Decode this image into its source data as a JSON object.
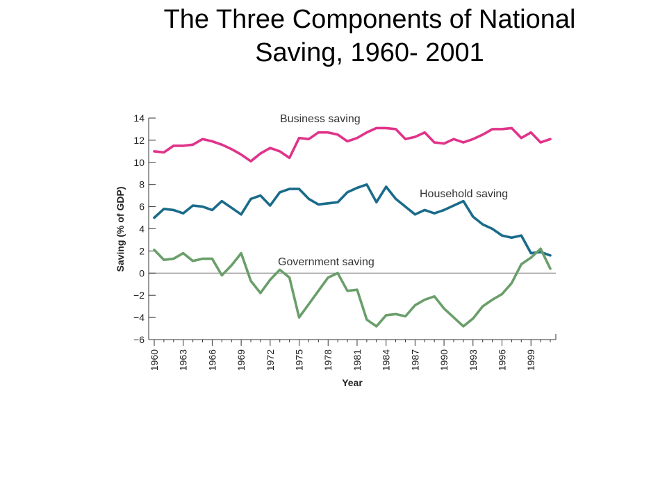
{
  "title": {
    "line1": "The Three Components of National",
    "line2": "Saving, 1960- 2001"
  },
  "chart_data": {
    "type": "line",
    "xlabel": "Year",
    "ylabel": "Saving (% of GDP)",
    "xlim": [
      1960,
      2001
    ],
    "ylim": [
      -6,
      14
    ],
    "y_ticks": [
      "14",
      "12",
      "10",
      "8",
      "6",
      "4",
      "2",
      "0",
      "−2",
      "−4",
      "−6"
    ],
    "y_tick_values": [
      14,
      12,
      10,
      8,
      6,
      4,
      2,
      0,
      -2,
      -4,
      -6
    ],
    "x_ticks": [
      "1960",
      "1963",
      "1966",
      "1969",
      "1972",
      "1975",
      "1978",
      "1981",
      "1984",
      "1987",
      "1990",
      "1993",
      "1996",
      "1999"
    ],
    "x_tick_values": [
      1960,
      1963,
      1966,
      1969,
      1972,
      1975,
      1978,
      1981,
      1984,
      1987,
      1990,
      1993,
      1996,
      1999
    ],
    "zero_line": true,
    "x": [
      1960,
      1961,
      1962,
      1963,
      1964,
      1965,
      1966,
      1967,
      1968,
      1969,
      1970,
      1971,
      1972,
      1973,
      1974,
      1975,
      1976,
      1977,
      1978,
      1979,
      1980,
      1981,
      1982,
      1983,
      1984,
      1985,
      1986,
      1987,
      1988,
      1989,
      1990,
      1991,
      1992,
      1993,
      1994,
      1995,
      1996,
      1997,
      1998,
      1999,
      2000,
      2001
    ],
    "series": [
      {
        "name": "Business saving",
        "color": "#e0338a",
        "values": [
          11.0,
          10.9,
          11.5,
          11.5,
          11.6,
          12.1,
          11.9,
          11.6,
          11.2,
          10.7,
          10.1,
          10.8,
          11.3,
          11.0,
          10.4,
          12.2,
          12.1,
          12.7,
          12.7,
          12.5,
          11.9,
          12.2,
          12.7,
          13.1,
          13.1,
          13.0,
          12.1,
          12.3,
          12.7,
          11.8,
          11.7,
          12.1,
          11.8,
          12.1,
          12.5,
          13.0,
          13.0,
          13.1,
          12.2,
          12.7,
          11.8,
          12.1
        ]
      },
      {
        "name": "Household saving",
        "color": "#1a6b8a",
        "values": [
          5.0,
          5.8,
          5.7,
          5.4,
          6.1,
          6.0,
          5.7,
          6.5,
          5.9,
          5.3,
          6.7,
          7.0,
          6.1,
          7.3,
          7.6,
          7.6,
          6.7,
          6.2,
          6.3,
          6.4,
          7.3,
          7.7,
          8.0,
          6.4,
          7.8,
          6.7,
          6.0,
          5.3,
          5.7,
          5.4,
          5.7,
          6.1,
          6.5,
          5.1,
          4.4,
          4.0,
          3.4,
          3.2,
          3.4,
          1.8,
          1.9,
          1.6
        ]
      },
      {
        "name": "Government saving",
        "color": "#6a9e6a",
        "values": [
          2.1,
          1.2,
          1.3,
          1.8,
          1.1,
          1.3,
          1.3,
          -0.2,
          0.7,
          1.8,
          -0.7,
          -1.8,
          -0.6,
          0.3,
          -0.4,
          -4.0,
          -2.8,
          -1.6,
          -0.4,
          0.0,
          -1.6,
          -1.5,
          -4.2,
          -4.8,
          -3.8,
          -3.7,
          -3.9,
          -2.9,
          -2.4,
          -2.1,
          -3.2,
          -4.0,
          -4.8,
          -4.1,
          -3.0,
          -2.4,
          -1.9,
          -0.9,
          0.8,
          1.4,
          2.2,
          0.4
        ]
      }
    ]
  }
}
